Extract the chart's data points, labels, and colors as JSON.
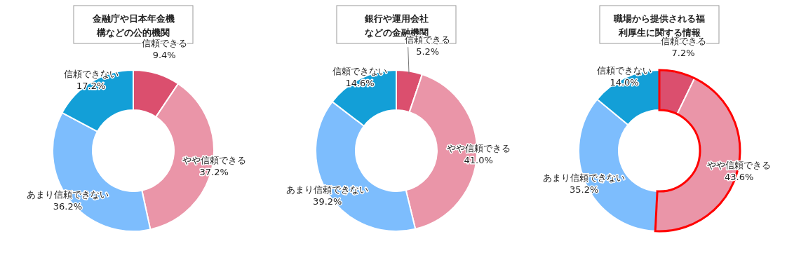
{
  "chart_data": [
    {
      "type": "donut",
      "title": "金融庁や日本年金機構などの公的機関",
      "categories": [
        "信頼できる",
        "やや信頼できる",
        "あまり信頼できない",
        "信頼できない"
      ],
      "values": [
        9.4,
        37.2,
        36.2,
        17.2
      ],
      "value_labels": [
        "9.4%",
        "37.2%",
        "36.2%",
        "17.2%"
      ],
      "colors": [
        "#db4f6e",
        "#ea95a8",
        "#7dbdfd",
        "#139fd7"
      ],
      "legend": false
    },
    {
      "type": "donut",
      "title": "銀行や運用会社などの金融機関",
      "categories": [
        "信頼できる",
        "やや信頼できる",
        "あまり信頼できない",
        "信頼できない"
      ],
      "values": [
        5.2,
        41.0,
        39.2,
        14.6
      ],
      "value_labels": [
        "5.2%",
        "41.0%",
        "39.2%",
        "14.6%"
      ],
      "colors": [
        "#db4f6e",
        "#ea95a8",
        "#7dbdfd",
        "#139fd7"
      ],
      "legend": false
    },
    {
      "type": "donut",
      "title": "職場から提供される福利厚生に関する情報",
      "categories": [
        "信頼できる",
        "やや信頼できる",
        "あまり信頼できない",
        "信頼できない"
      ],
      "values": [
        7.2,
        43.6,
        35.2,
        14.0
      ],
      "value_labels": [
        "7.2%",
        "43.6%",
        "35.2%",
        "14.0%"
      ],
      "colors": [
        "#db4f6e",
        "#ea95a8",
        "#7dbdfd",
        "#139fd7"
      ],
      "legend": false
    }
  ]
}
